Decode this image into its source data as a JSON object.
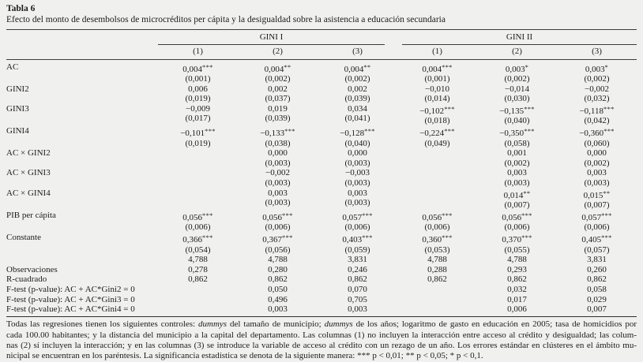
{
  "title": "Tabla 6",
  "subtitle": "Efecto del monto de desembolsos de microcréditos per cápita y la desigualdad sobre la asistencia a educación secundaria",
  "table": {
    "groups": [
      "GINI I",
      "GINI II"
    ],
    "columns": [
      "(1)",
      "(2)",
      "(3)",
      "(1)",
      "(2)",
      "(3)"
    ],
    "rows": [
      {
        "label": "AC",
        "values": [
          "0,004***",
          "0,004**",
          "0,004**",
          "0,004***",
          "0,003*",
          "0,003*"
        ],
        "se": [
          "(0,001)",
          "(0,002)",
          "(0,002)",
          "(0,001)",
          "(0,002)",
          "(0,002)"
        ]
      },
      {
        "label": "GINI2",
        "values": [
          "0,006",
          "0,002",
          "0,002",
          "−0,010",
          "−0,014",
          "−0,002"
        ],
        "se": [
          "(0,019)",
          "(0,037)",
          "(0,039)",
          "(0,014)",
          "(0,030)",
          "(0,032)"
        ]
      },
      {
        "label": "GINI3",
        "values": [
          "−0,009",
          "0,019",
          "0,034",
          "−0,102***",
          "−0,135***",
          "−0,118***"
        ],
        "se": [
          "(0,017)",
          "(0,039)",
          "(0,041)",
          "(0,018)",
          "(0,040)",
          "(0,042)"
        ]
      },
      {
        "label": "GINI4",
        "values": [
          "−0,101***",
          "−0,133***",
          "−0,128***",
          "−0,224***",
          "−0,350***",
          "−0,360***"
        ],
        "se": [
          "(0,019)",
          "(0,038)",
          "(0,040)",
          "(0,049)",
          "(0,058)",
          "(0,060)"
        ]
      },
      {
        "label": "AC × GINI2",
        "values": [
          "",
          "0,000",
          "0,000",
          "",
          "0,001",
          "0,000"
        ],
        "se": [
          "",
          "(0,003)",
          "(0,003)",
          "",
          "(0,002)",
          "(0,002)"
        ]
      },
      {
        "label": "AC × GINI3",
        "values": [
          "",
          "−0,002",
          "−0,003",
          "",
          "0,003",
          "0,003"
        ],
        "se": [
          "",
          "(0,003)",
          "(0,003)",
          "",
          "(0,003)",
          "(0,003)"
        ]
      },
      {
        "label": "AC × GINI4",
        "values": [
          "",
          "0,003",
          "0,003",
          "",
          "0,014**",
          "0,015**"
        ],
        "se": [
          "",
          "(0,003)",
          "(0,003)",
          "",
          "(0,007)",
          "(0,007)"
        ]
      },
      {
        "label": "PIB per cápita",
        "values": [
          "0,056***",
          "0,056***",
          "0,057***",
          "0,056***",
          "0,056***",
          "0,057***"
        ],
        "se": [
          "(0,006)",
          "(0,006)",
          "(0,006)",
          "(0,006)",
          "(0,006)",
          "(0,006)"
        ]
      },
      {
        "label": "Constante",
        "values": [
          "0,366***",
          "0,367***",
          "0,403***",
          "0,360***",
          "0,370***",
          "0,405***"
        ],
        "se": [
          "(0,054)",
          "(0,056)",
          "(0,059)",
          "(0,053)",
          "(0,055)",
          "(0,057)"
        ]
      },
      {
        "label": "",
        "values": [
          "4,788",
          "4,788",
          "3,831",
          "4,788",
          "4,788",
          "3,831"
        ]
      },
      {
        "label": "Observaciones",
        "values": [
          "0,278",
          "0,280",
          "0,246",
          "0,288",
          "0,293",
          "0,260"
        ]
      },
      {
        "label": "R-cuadrado",
        "values": [
          "0,862",
          "0,862",
          "0,862",
          "0,862",
          "0,862",
          "0,862"
        ]
      },
      {
        "label": "F-test (p-value): AC + AC*Gini2 = 0",
        "values": [
          "",
          "0,050",
          "0,070",
          "",
          "0,032",
          "0,058"
        ]
      },
      {
        "label": "F-test (p-value): AC + AC*Gini3 = 0",
        "values": [
          "",
          "0,496",
          "0,705",
          "",
          "0,017",
          "0,029"
        ]
      },
      {
        "label": "F-test (p-value): AC + AC*Gini4 = 0",
        "values": [
          "",
          "0,003",
          "0,003",
          "",
          "0,006",
          "0,007"
        ]
      }
    ]
  },
  "footnote": {
    "italic_word": "dummys",
    "lines": [
      "Todas las regresiones tienen los siguientes controles: dummys del tamaño de municipio; dummys de los años; logaritmo de gasto en educación en 2005; tasa de homicidios por",
      "cada 100.00 habitantes; y la distancia del municipio a la capital del departamento. Las columnas (1) no incluyen la interacción entre acceso al crédito y desigualdad; las colum-",
      "nas (2) sí incluyen la interacción; y en las columnas (3) se introduce la variable de acceso al crédito con un rezago de un año. Los errores estándar en clústeres en el ámbito mu-",
      "nicipal se encuentran en los paréntesis. La significancia estadística se denota de la siguiente manera: *** p < 0,01; ** p < 0,05; * p < 0,1."
    ]
  }
}
